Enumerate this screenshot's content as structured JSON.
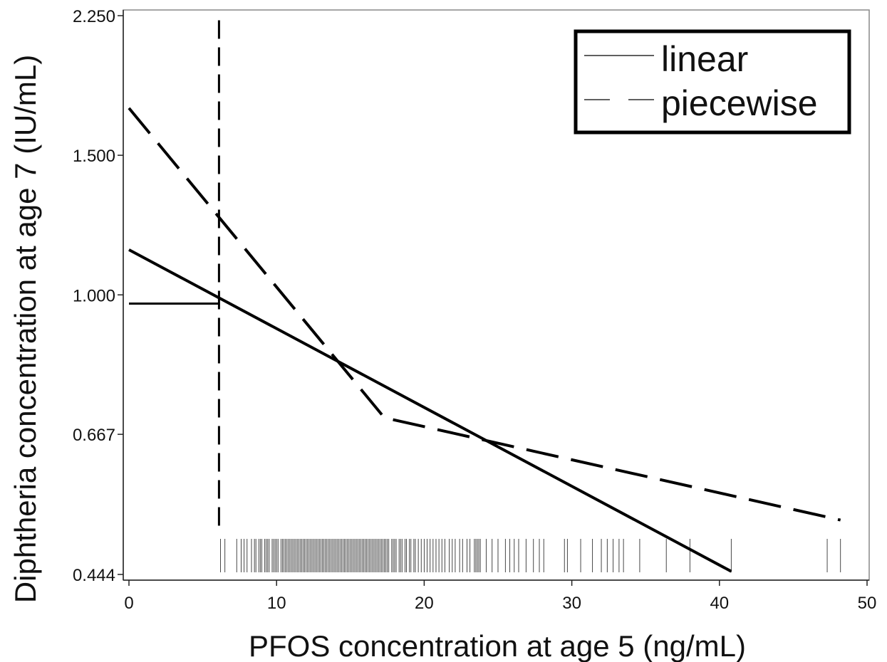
{
  "chart_data": {
    "type": "line",
    "xlabel": "PFOS concentration at age 5 (ng/mL)",
    "ylabel": "Diphtheria concentration at age 7 (IU/mL)",
    "y_scale": "log",
    "xlim": [
      0,
      50
    ],
    "ylim": [
      0.444,
      2.25
    ],
    "x_ticks": [
      0,
      10,
      20,
      30,
      40,
      50
    ],
    "x_tick_labels": [
      "0",
      "10",
      "20",
      "30",
      "40",
      "50"
    ],
    "y_ticks": [
      0.444,
      0.667,
      1.0,
      1.5,
      2.25
    ],
    "y_tick_labels": [
      "0.444",
      "0.667",
      "1.000",
      "1.500",
      "2.250"
    ],
    "grid": false,
    "legend_position": "top-right",
    "series": [
      {
        "name": "linear",
        "style": "solid",
        "x": [
          0,
          40.8
        ],
        "y": [
          1.14,
          0.448
        ]
      },
      {
        "name": "piecewise",
        "style": "dashed",
        "x": [
          0,
          17.3,
          48.2
        ],
        "y": [
          1.72,
          0.7,
          0.52
        ]
      }
    ],
    "reference_lines": {
      "vertical_dashed_x": 6.1,
      "vertical_dashed_y_range": [
        0.51,
        2.22
      ],
      "horizontal_solid_y": 0.975,
      "horizontal_solid_x_range": [
        0,
        6.1
      ]
    },
    "rug": [
      6.2,
      6.5,
      7.3,
      7.6,
      7.8,
      8.0,
      8.3,
      8.5,
      8.6,
      8.8,
      8.9,
      9.0,
      9.2,
      9.3,
      9.4,
      9.5,
      9.7,
      9.8,
      9.9,
      10.0,
      10.1,
      10.3,
      10.4,
      10.5,
      10.6,
      10.7,
      10.8,
      10.9,
      11.0,
      11.1,
      11.2,
      11.3,
      11.4,
      11.5,
      11.6,
      11.7,
      11.8,
      11.9,
      12.0,
      12.1,
      12.2,
      12.3,
      12.4,
      12.5,
      12.6,
      12.7,
      12.8,
      12.9,
      13.0,
      13.1,
      13.2,
      13.3,
      13.4,
      13.5,
      13.6,
      13.7,
      13.8,
      13.9,
      14.0,
      14.1,
      14.2,
      14.3,
      14.4,
      14.5,
      14.6,
      14.7,
      14.8,
      14.9,
      15.0,
      15.1,
      15.2,
      15.3,
      15.4,
      15.5,
      15.6,
      15.7,
      15.8,
      15.9,
      16.0,
      16.1,
      16.2,
      16.3,
      16.4,
      16.5,
      16.6,
      16.7,
      16.8,
      16.9,
      17.0,
      17.1,
      17.2,
      17.3,
      17.4,
      17.5,
      17.6,
      17.8,
      17.9,
      18.0,
      18.1,
      18.3,
      18.4,
      18.5,
      18.7,
      18.8,
      19.0,
      19.1,
      19.3,
      19.4,
      19.6,
      19.8,
      20.0,
      20.2,
      20.4,
      20.6,
      20.8,
      21.0,
      21.2,
      21.4,
      21.7,
      21.9,
      22.1,
      22.4,
      22.6,
      22.9,
      23.1,
      23.4,
      23.5,
      23.6,
      23.7,
      23.8,
      24.2,
      24.6,
      25.0,
      25.5,
      25.8,
      26.1,
      26.4,
      26.9,
      27.4,
      27.8,
      28.1,
      29.5,
      29.7,
      30.6,
      31.4,
      32.0,
      32.4,
      32.8,
      33.2,
      33.5,
      34.6,
      36.4,
      38.0,
      40.8,
      47.3,
      48.2
    ]
  }
}
